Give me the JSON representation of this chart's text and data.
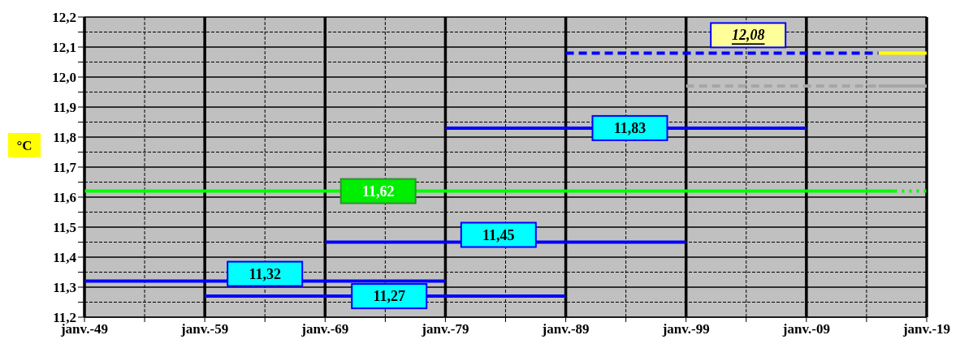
{
  "chart_data": {
    "type": "line",
    "ylabel": "°C",
    "xlim": [
      "1949-01",
      "2019-01"
    ],
    "xticks": [
      {
        "value": "1949-01",
        "label": "janv.-49"
      },
      {
        "value": "1954-01",
        "label": null
      },
      {
        "value": "1959-01",
        "label": "janv.-59"
      },
      {
        "value": "1964-01",
        "label": null
      },
      {
        "value": "1969-01",
        "label": "janv.-69"
      },
      {
        "value": "1974-01",
        "label": null
      },
      {
        "value": "1979-01",
        "label": "janv.-79"
      },
      {
        "value": "1984-01",
        "label": null
      },
      {
        "value": "1989-01",
        "label": "janv.-89"
      },
      {
        "value": "1994-01",
        "label": null
      },
      {
        "value": "1999-01",
        "label": "janv.-99"
      },
      {
        "value": "2004-01",
        "label": null
      },
      {
        "value": "2009-01",
        "label": "janv.-09"
      },
      {
        "value": "2014-01",
        "label": null
      },
      {
        "value": "2019-01",
        "label": "janv.-19"
      }
    ],
    "ylim": [
      11.2,
      12.2
    ],
    "yticks": [
      {
        "value": 11.2,
        "label": "11,2"
      },
      {
        "value": 11.25,
        "label": null
      },
      {
        "value": 11.3,
        "label": "11,3"
      },
      {
        "value": 11.35,
        "label": null
      },
      {
        "value": 11.4,
        "label": "11,4"
      },
      {
        "value": 11.45,
        "label": null
      },
      {
        "value": 11.5,
        "label": "11,5"
      },
      {
        "value": 11.55,
        "label": null
      },
      {
        "value": 11.6,
        "label": "11,6"
      },
      {
        "value": 11.65,
        "label": null
      },
      {
        "value": 11.7,
        "label": "11,7"
      },
      {
        "value": 11.75,
        "label": null
      },
      {
        "value": 11.8,
        "label": "11,8"
      },
      {
        "value": 11.85,
        "label": null
      },
      {
        "value": 11.9,
        "label": "11,9"
      },
      {
        "value": 11.95,
        "label": null
      },
      {
        "value": 12.0,
        "label": "12,0"
      },
      {
        "value": 12.05,
        "label": null
      },
      {
        "value": 12.1,
        "label": "12,1"
      },
      {
        "value": 12.15,
        "label": null
      },
      {
        "value": 12.2,
        "label": "12,2"
      }
    ],
    "grid": true,
    "marker": "none",
    "annotations": [
      {
        "text": "11,32",
        "x": "1964-01",
        "y": 11.32
      },
      {
        "text": "11,27",
        "x": "1974-05",
        "y": 11.27
      },
      {
        "text": "11,45",
        "x": "1983-06",
        "y": 11.45
      },
      {
        "text": "11,83",
        "x": "1994-05",
        "y": 11.83
      },
      {
        "text": "12,08",
        "x": "2004-03",
        "y": 12.08
      },
      {
        "text": "11,62",
        "x": "1973-06",
        "y": 11.62
      }
    ],
    "series": [
      {
        "color": "#0000ff",
        "line_style": "solid",
        "x": [
          "1949-01",
          "1979-01"
        ],
        "values": [
          11.32,
          11.32
        ]
      },
      {
        "color": "#0000ff",
        "line_style": "solid",
        "x": [
          "1959-01",
          "1989-01"
        ],
        "values": [
          11.27,
          11.27
        ]
      },
      {
        "color": "#0000ff",
        "line_style": "solid",
        "x": [
          "1969-01",
          "1999-01"
        ],
        "values": [
          11.45,
          11.45
        ]
      },
      {
        "color": "#0000ff",
        "line_style": "solid",
        "x": [
          "1979-01",
          "2009-01"
        ],
        "values": [
          11.83,
          11.83
        ]
      },
      {
        "color": "#0000ff",
        "line_style": "dashed",
        "x": [
          "1989-01",
          "2015-01"
        ],
        "values": [
          12.08,
          12.08
        ]
      },
      {
        "color": "#ffff00",
        "line_style": "solid",
        "x": [
          "2015-01",
          "2019-01"
        ],
        "values": [
          12.08,
          12.08
        ]
      },
      {
        "color": "#a6a6a6",
        "line_style": "dashed",
        "x": [
          "1999-01",
          "2015-01"
        ],
        "values": [
          11.97,
          11.97
        ]
      },
      {
        "color": "#a6a6a6",
        "line_style": "solid",
        "x": [
          "2015-01",
          "2019-01"
        ],
        "values": [
          11.97,
          11.97
        ]
      },
      {
        "color": "#00ff00",
        "line_style": "solid",
        "x": [
          "1949-01",
          "2016-05"
        ],
        "values": [
          11.62,
          11.62
        ]
      },
      {
        "color": "#00ff00",
        "line_style": "dotted",
        "x": [
          "2016-05",
          "2019-01"
        ],
        "values": [
          11.62,
          11.62
        ]
      }
    ]
  }
}
